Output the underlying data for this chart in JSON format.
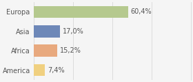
{
  "categories": [
    "Europa",
    "Asia",
    "Africa",
    "America"
  ],
  "values": [
    60.4,
    17.0,
    15.2,
    7.4
  ],
  "labels": [
    "60,4%",
    "17,0%",
    "15,2%",
    "7,4%"
  ],
  "bar_colors": [
    "#b5c98e",
    "#6e88b8",
    "#e8a97e",
    "#f0d080"
  ],
  "background_color": "#f5f5f5",
  "xlim": [
    0,
    100
  ],
  "xticks": [
    0,
    25,
    50,
    75,
    100
  ],
  "bar_height": 0.62,
  "label_fontsize": 7.0,
  "tick_fontsize": 7.0,
  "grid_color": "#d8d8d8"
}
